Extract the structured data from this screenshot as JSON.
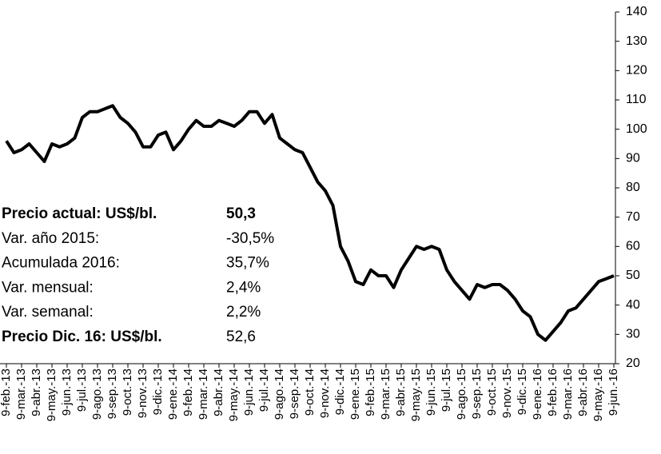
{
  "chart_data": {
    "type": "line",
    "categories": [
      "9-feb.-13",
      null,
      "9-mar.-13",
      null,
      "9-abr.-13",
      null,
      "9-may.-13",
      null,
      "9-jun.-13",
      null,
      "9-jul.-13",
      null,
      "9-ago.-13",
      null,
      "9-sep.-13",
      null,
      "9-oct.-13",
      null,
      "9-nov.-13",
      null,
      "9-dic.-13",
      null,
      "9-ene.-14",
      null,
      "9-feb.-14",
      null,
      "9-mar.-14",
      null,
      "9-abr.-14",
      null,
      "9-may.-14",
      null,
      "9-jun.-14",
      null,
      "9-jul.-14",
      null,
      "9-ago.-14",
      null,
      "9-sep.-14",
      null,
      "9-oct.-14",
      null,
      "9-nov.-14",
      null,
      "9-dic.-14",
      null,
      "9-ene.-15",
      null,
      "9-feb.-15",
      null,
      "9-mar.-15",
      null,
      "9-abr.-15",
      null,
      "9-may.-15",
      null,
      "9-jun.-15",
      null,
      "9-jul.-15",
      null,
      "9-ago.-15",
      null,
      "9-sep.-15",
      null,
      "9-oct.-15",
      null,
      "9-nov.-15",
      null,
      "9-dic.-15",
      null,
      "9-ene.-16",
      null,
      "9-feb.-16",
      null,
      "9-mar.-16",
      null,
      "9-abr.-16",
      null,
      "9-may.-16",
      null,
      "9-jun.-16"
    ],
    "values": [
      96,
      92,
      93,
      95,
      92,
      89,
      95,
      94,
      95,
      97,
      104,
      106,
      106,
      107,
      108,
      104,
      102,
      99,
      94,
      94,
      98,
      99,
      93,
      96,
      100,
      103,
      101,
      101,
      103,
      102,
      101,
      103,
      106,
      106,
      102,
      105,
      97,
      95,
      93,
      92,
      87,
      82,
      79,
      74,
      60,
      55,
      48,
      47,
      52,
      50,
      50,
      46,
      52,
      56,
      60,
      59,
      60,
      59,
      52,
      48,
      45,
      42,
      47,
      46,
      47,
      47,
      45,
      42,
      38,
      36,
      30,
      28,
      31,
      34,
      38,
      39,
      42,
      45,
      48,
      49,
      50
    ],
    "color": "#000000",
    "ylim": [
      20,
      140
    ],
    "yticks": [
      20,
      30,
      40,
      50,
      60,
      70,
      80,
      90,
      100,
      110,
      120,
      130,
      140
    ],
    "annotations": [
      {
        "label": "Precio actual: US$/bl.",
        "value": "50,3"
      },
      {
        "label": "Var. año 2015:",
        "value": "-30,5%"
      },
      {
        "label": "Acumulada 2016:",
        "value": "35,7%"
      },
      {
        "label": "Var. mensual:",
        "value": "2,4%"
      },
      {
        "label": "Var. semanal:",
        "value": "2,2%"
      },
      {
        "label": "Precio Dic. 16:  US$/bl.",
        "value": "52,6"
      }
    ]
  }
}
